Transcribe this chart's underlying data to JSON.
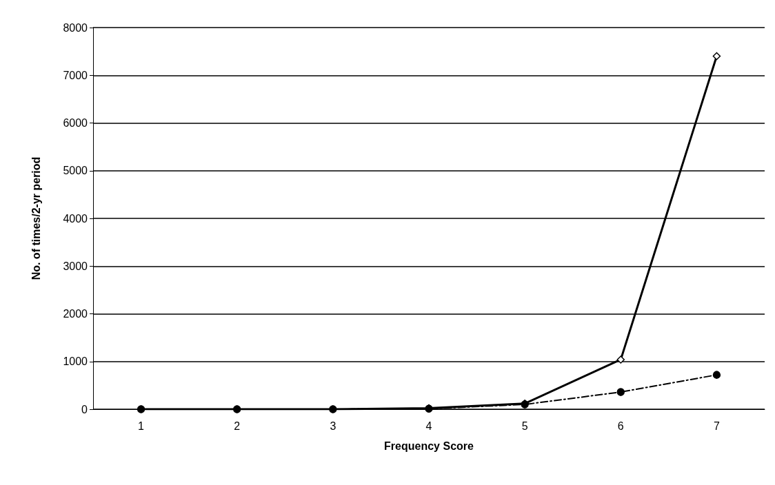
{
  "chart_data": {
    "type": "line",
    "xlabel": "Frequency Score",
    "ylabel": "No. of times/2-yr period",
    "categories": [
      "1",
      "2",
      "3",
      "4",
      "5",
      "6",
      "7"
    ],
    "series": [
      {
        "color": "#000000",
        "marker": "diamond",
        "line_style": "solid",
        "values": [
          0,
          0,
          0,
          20,
          120,
          1040,
          7400
        ]
      },
      {
        "color": "#000000",
        "marker": "circle",
        "line_style": "dashed",
        "values": [
          0,
          0,
          0,
          10,
          100,
          360,
          720
        ]
      }
    ],
    "ylim": [
      0,
      8000
    ],
    "yticks": [
      0,
      1000,
      2000,
      3000,
      4000,
      5000,
      6000,
      7000,
      8000
    ],
    "grid": "y"
  }
}
